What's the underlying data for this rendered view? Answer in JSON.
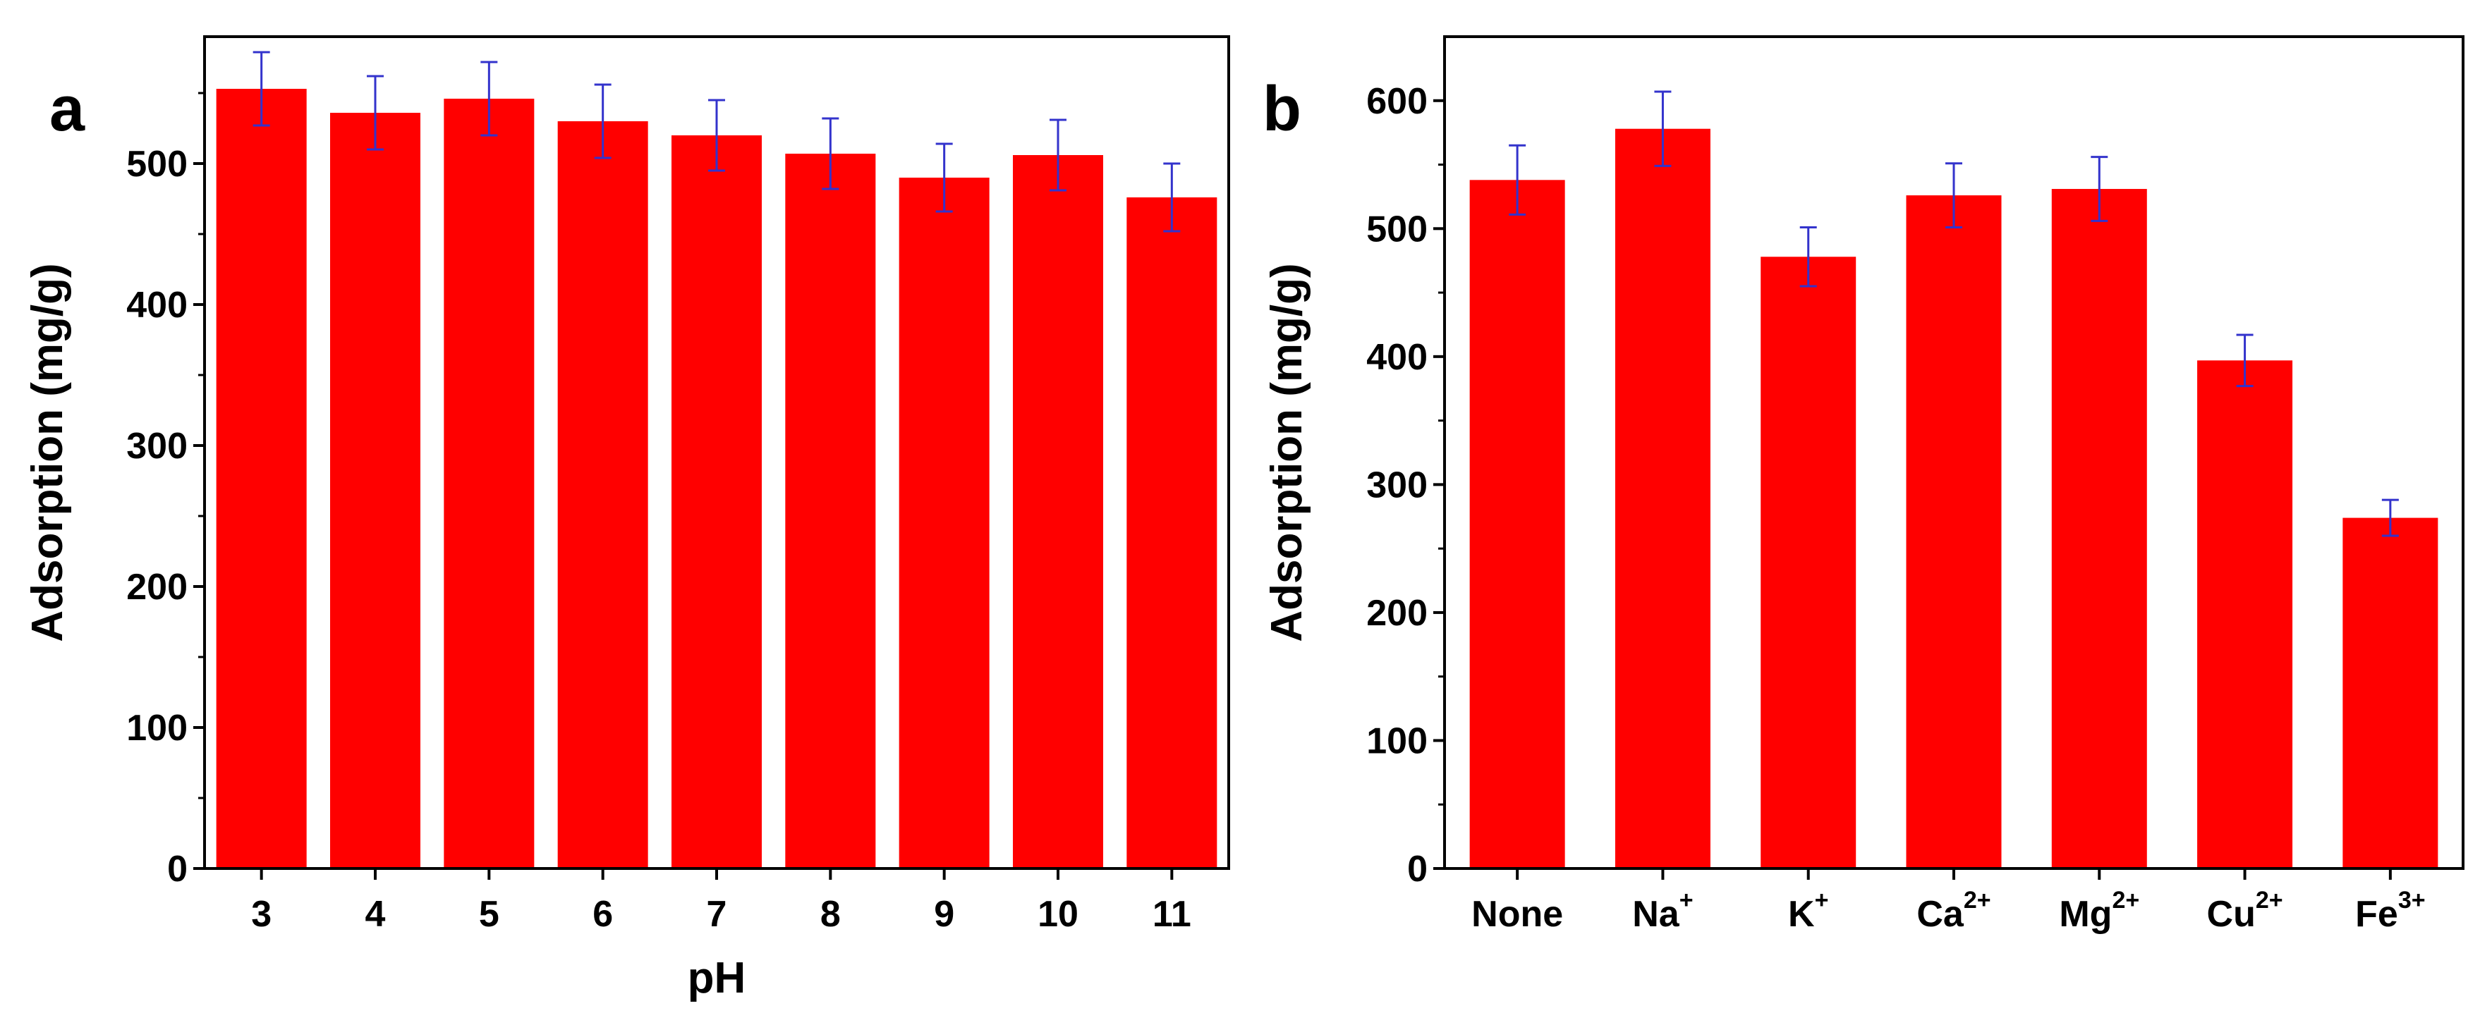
{
  "chart_data": [
    {
      "type": "bar",
      "panel_label": "a",
      "xlabel": "pH",
      "ylabel": "Adsorption (mg/g)",
      "categories": [
        "3",
        "4",
        "5",
        "6",
        "7",
        "8",
        "9",
        "10",
        "11"
      ],
      "values": [
        553,
        536,
        546,
        530,
        520,
        507,
        490,
        506,
        476
      ],
      "errors": [
        26,
        26,
        26,
        26,
        25,
        25,
        24,
        25,
        24
      ],
      "ylim": [
        0,
        590
      ],
      "yticks": [
        0,
        100,
        200,
        300,
        400,
        500
      ],
      "bar_color": "#ff0000",
      "error_color": "#3333cc",
      "grid": false
    },
    {
      "type": "bar",
      "panel_label": "b",
      "xlabel": "",
      "ylabel": "Adsorption (mg/g)",
      "categories": [
        {
          "base": "None",
          "sup": ""
        },
        {
          "base": "Na",
          "sup": "+"
        },
        {
          "base": "K",
          "sup": "+"
        },
        {
          "base": "Ca",
          "sup": "2+"
        },
        {
          "base": "Mg",
          "sup": "2+"
        },
        {
          "base": "Cu",
          "sup": "2+"
        },
        {
          "base": "Fe",
          "sup": "3+"
        }
      ],
      "values": [
        538,
        578,
        478,
        526,
        531,
        397,
        274
      ],
      "errors": [
        27,
        29,
        23,
        25,
        25,
        20,
        14
      ],
      "ylim": [
        0,
        650
      ],
      "yticks": [
        0,
        100,
        200,
        300,
        400,
        500,
        600
      ],
      "bar_color": "#ff0000",
      "error_color": "#3333cc",
      "grid": false
    }
  ]
}
